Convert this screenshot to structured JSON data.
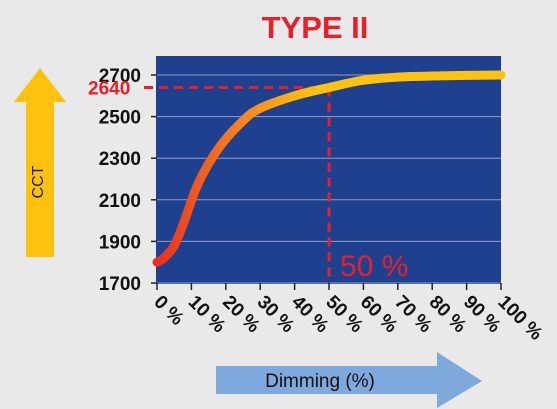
{
  "chart_data": {
    "type": "line",
    "title": "TYPE II",
    "xlabel": "Dimming (%)",
    "ylabel": "CCT",
    "x_tick_labels": [
      "0 %",
      "10 %",
      "20 %",
      "30 %",
      "40 %",
      "50 %",
      "60 %",
      "70 %",
      "80 %",
      "90 %",
      "100 %"
    ],
    "y_tick_labels": [
      "1700",
      "1900",
      "2100",
      "2300",
      "2500",
      "2700"
    ],
    "xlim": [
      0,
      100
    ],
    "ylim": [
      1700,
      2700
    ],
    "grid": true,
    "series": [
      {
        "x": [
          0,
          2,
          5,
          8,
          12,
          18,
          25,
          30,
          40,
          50,
          60,
          70,
          80,
          90,
          100
        ],
        "y": [
          1800,
          1820,
          1880,
          2000,
          2180,
          2350,
          2480,
          2540,
          2600,
          2640,
          2675,
          2690,
          2695,
          2698,
          2700
        ]
      }
    ],
    "annotation": {
      "x_label": "50 %",
      "y_label": "2640",
      "x": 50,
      "y": 2640
    },
    "colors": {
      "plot_background": "#1f3f8f",
      "curve_start": "#e8301f",
      "curve_end": "#ffc20e",
      "annotation": "#e8202a",
      "title": "#e8202a",
      "cct_arrow": "#ffc20e",
      "dimming_arrow": "#7fa8dd"
    }
  }
}
